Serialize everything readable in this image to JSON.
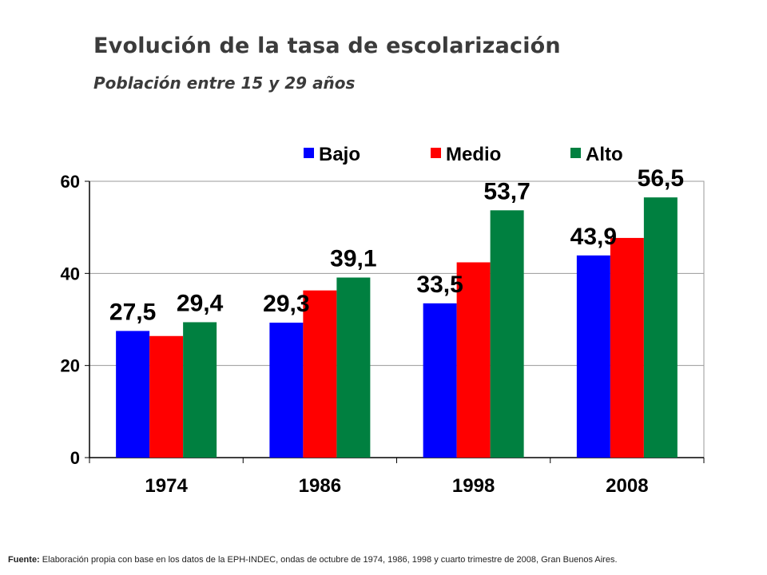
{
  "title": "Evolución de la tasa de escolarización",
  "subtitle": "Población entre 15 y 29 años",
  "footnote": {
    "label": "Fuente:",
    "text": " Elaboración propia con base en los datos de la EPH-INDEC, ondas de octubre de 1974, 1986, 1998 y cuarto trimestre de 2008, Gran Buenos Aires."
  },
  "chart_data": {
    "type": "bar",
    "categories": [
      "1974",
      "1986",
      "1998",
      "2008"
    ],
    "series": [
      {
        "name": "Bajo",
        "color": "#0000ff",
        "values": [
          27.5,
          29.3,
          33.5,
          43.9
        ]
      },
      {
        "name": "Medio",
        "color": "#ff0000",
        "values": [
          26.4,
          36.3,
          42.4,
          47.7
        ]
      },
      {
        "name": "Alto",
        "color": "#008040",
        "values": [
          29.4,
          39.1,
          53.7,
          56.5
        ]
      }
    ],
    "data_labels": [
      {
        "series": 0,
        "category": 0,
        "text": "27,5"
      },
      {
        "series": 2,
        "category": 0,
        "text": "29,4"
      },
      {
        "series": 0,
        "category": 1,
        "text": "29,3"
      },
      {
        "series": 2,
        "category": 1,
        "text": "39,1"
      },
      {
        "series": 0,
        "category": 2,
        "text": "33,5"
      },
      {
        "series": 2,
        "category": 2,
        "text": "53,7"
      },
      {
        "series": 0,
        "category": 3,
        "text": "43,9"
      },
      {
        "series": 2,
        "category": 3,
        "text": "56,5"
      }
    ],
    "yticks": [
      0,
      20,
      40,
      60
    ],
    "ylim": [
      0,
      60
    ],
    "grid": true,
    "legend_position": "top-right"
  }
}
